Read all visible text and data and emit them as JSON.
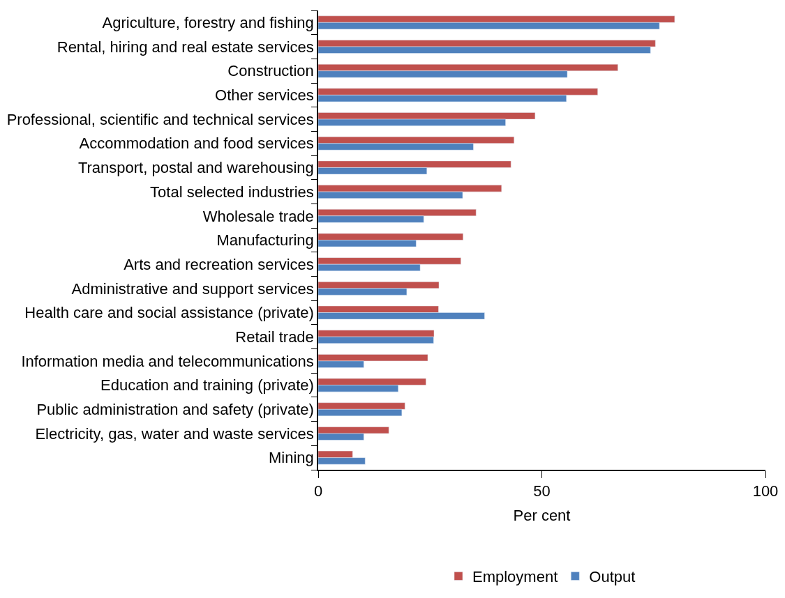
{
  "chart_data": {
    "type": "bar",
    "orientation": "horizontal",
    "xlabel": "Per cent",
    "categories": [
      "Agriculture, forestry and fishing",
      "Rental, hiring and real estate services",
      "Construction",
      "Other services",
      "Professional, scientific and technical services",
      "Accommodation and food services",
      "Transport, postal and warehousing",
      "Total selected industries",
      "Wholesale trade",
      "Manufacturing",
      "Arts and recreation services",
      "Administrative and support services",
      "Health care and social assistance (private)",
      "Retail trade",
      "Information media and telecommunications",
      "Education and training (private)",
      "Public administration and safety (private)",
      "Electricity, gas, water and waste services",
      "Mining"
    ],
    "series": [
      {
        "name": "Employment",
        "color": "#c0504d",
        "values": [
          79.7,
          75.4,
          67.0,
          62.5,
          48.5,
          43.8,
          43.1,
          41.0,
          35.3,
          32.4,
          31.9,
          27.0,
          26.9,
          25.9,
          24.5,
          24.1,
          19.4,
          15.8,
          7.7
        ]
      },
      {
        "name": "Output",
        "color": "#4f81bd",
        "values": [
          76.3,
          74.3,
          55.7,
          55.5,
          41.9,
          34.7,
          24.3,
          32.3,
          23.6,
          21.9,
          22.8,
          19.8,
          37.2,
          25.8,
          10.2,
          17.9,
          18.7,
          10.2,
          10.5
        ]
      }
    ],
    "xlim": [
      0,
      100
    ],
    "xticks": [
      0,
      50,
      100
    ],
    "legend": "bottom"
  }
}
